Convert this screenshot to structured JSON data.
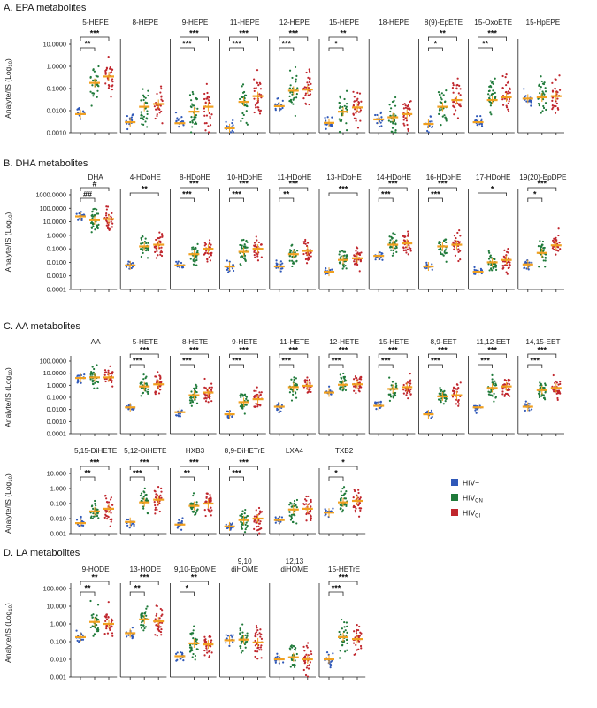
{
  "colors": {
    "HIV-": "#2f58b8",
    "HIVCN": "#1f7a3a",
    "HIVCI": "#c0262d",
    "mean": "#f0a020"
  },
  "legend": [
    {
      "key": "HIV-",
      "label": "HIV−"
    },
    {
      "key": "HIVCN",
      "label": "HIV",
      "sub": "CN"
    },
    {
      "key": "HIVCI",
      "label": "HIV",
      "sub": "CI"
    }
  ],
  "ylabel_main": "Analyte/IS (Log",
  "ylabel_sub": "10",
  "ylabel_end": ")",
  "chart_data": [
    {
      "type": "scatter",
      "title": "A. EPA metabolites",
      "ylim": [
        0.001,
        10
      ],
      "yticks": [
        "10.0000",
        "1.0000",
        "0.1000",
        "0.0100",
        "0.0010"
      ],
      "panels": [
        {
          "title": "5-HEPE",
          "means": [
            0.007,
            0.18,
            0.35
          ],
          "sig": [
            {
              "a": 0,
              "b": 1,
              "t": "**"
            },
            {
              "a": 0,
              "b": 2,
              "t": "***"
            }
          ]
        },
        {
          "title": "8-HEPE",
          "means": [
            0.003,
            0.015,
            0.02
          ],
          "sig": []
        },
        {
          "title": "9-HEPE",
          "means": [
            0.0027,
            0.009,
            0.015
          ],
          "sig": [
            {
              "a": 0,
              "b": 1,
              "t": "***"
            },
            {
              "a": 0,
              "b": 2,
              "t": "***"
            }
          ]
        },
        {
          "title": "11-HEPE",
          "means": [
            0.0016,
            0.025,
            0.045
          ],
          "sig": [
            {
              "a": 0,
              "b": 1,
              "t": "***"
            },
            {
              "a": 0,
              "b": 2,
              "t": "***"
            }
          ]
        },
        {
          "title": "12-HEPE",
          "means": [
            0.016,
            0.08,
            0.09
          ],
          "sig": [
            {
              "a": 0,
              "b": 1,
              "t": "***"
            },
            {
              "a": 0,
              "b": 2,
              "t": "***"
            }
          ]
        },
        {
          "title": "15-HEPE",
          "means": [
            0.0028,
            0.009,
            0.014
          ],
          "sig": [
            {
              "a": 0,
              "b": 1,
              "t": "*"
            },
            {
              "a": 0,
              "b": 2,
              "t": "**"
            }
          ]
        },
        {
          "title": "18-HEPE",
          "means": [
            0.004,
            0.005,
            0.007
          ],
          "sig": []
        },
        {
          "title": "8(9)-EpETE",
          "means": [
            0.0025,
            0.015,
            0.03
          ],
          "sig": [
            {
              "a": 0,
              "b": 1,
              "t": "*"
            },
            {
              "a": 0,
              "b": 2,
              "t": "**"
            }
          ]
        },
        {
          "title": "15-OxoETE",
          "means": [
            0.003,
            0.03,
            0.04
          ],
          "sig": [
            {
              "a": 0,
              "b": 1,
              "t": "**"
            },
            {
              "a": 0,
              "b": 2,
              "t": "***"
            }
          ]
        },
        {
          "title": "15-HpEPE",
          "means": [
            0.035,
            0.04,
            0.045
          ],
          "sig": []
        }
      ]
    },
    {
      "type": "scatter",
      "title": "B. DHA metabolites",
      "ylim": [
        0.0001,
        1000
      ],
      "yticks": [
        "1000.0000",
        "100.0000",
        "10.0000",
        "1.0000",
        "0.1000",
        "0.0100",
        "0.0010",
        "0.0001"
      ],
      "panels": [
        {
          "title": "DHA",
          "means": [
            25,
            13,
            16
          ],
          "sig": [
            {
              "a": 0,
              "b": 1,
              "t": "##"
            },
            {
              "a": 0,
              "b": 2,
              "t": "#"
            }
          ]
        },
        {
          "title": "4-HDoHE",
          "means": [
            0.006,
            0.15,
            0.2
          ],
          "sig": [
            {
              "a": 0,
              "b": 2,
              "t": "**"
            }
          ]
        },
        {
          "title": "8-HDoHE",
          "means": [
            0.006,
            0.04,
            0.1
          ],
          "sig": [
            {
              "a": 0,
              "b": 1,
              "t": "***"
            },
            {
              "a": 0,
              "b": 2,
              "t": "***"
            }
          ]
        },
        {
          "title": "10-HDoHE",
          "means": [
            0.005,
            0.06,
            0.1
          ],
          "sig": [
            {
              "a": 0,
              "b": 1,
              "t": "***"
            },
            {
              "a": 0,
              "b": 2,
              "t": "***"
            }
          ]
        },
        {
          "title": "11-HDoHE",
          "means": [
            0.005,
            0.04,
            0.07
          ],
          "sig": [
            {
              "a": 0,
              "b": 1,
              "t": "**"
            },
            {
              "a": 0,
              "b": 2,
              "t": "***"
            }
          ]
        },
        {
          "title": "13-HDoHE",
          "means": [
            0.002,
            0.015,
            0.02
          ],
          "sig": [
            {
              "a": 0,
              "b": 2,
              "t": "***"
            }
          ]
        },
        {
          "title": "14-HDoHE",
          "means": [
            0.03,
            0.2,
            0.25
          ],
          "sig": [
            {
              "a": 0,
              "b": 1,
              "t": "***"
            },
            {
              "a": 0,
              "b": 2,
              "t": "***"
            }
          ]
        },
        {
          "title": "16-HDoHE",
          "means": [
            0.005,
            0.15,
            0.2
          ],
          "sig": [
            {
              "a": 0,
              "b": 1,
              "t": "***"
            },
            {
              "a": 0,
              "b": 2,
              "t": "***"
            }
          ]
        },
        {
          "title": "17-HDoHE",
          "means": [
            0.002,
            0.01,
            0.015
          ],
          "sig": [
            {
              "a": 0,
              "b": 2,
              "t": "*"
            }
          ]
        },
        {
          "title": "19(20)-EpDPE",
          "means": [
            0.007,
            0.05,
            0.18
          ],
          "sig": [
            {
              "a": 0,
              "b": 1,
              "t": "*"
            },
            {
              "a": 0,
              "b": 2,
              "t": "***"
            }
          ]
        }
      ]
    },
    {
      "type": "scatter",
      "title": "C. AA metabolites",
      "ylim": [
        0.0001,
        100
      ],
      "yticks": [
        "100.0000",
        "10.0000",
        "1.0000",
        "0.1000",
        "0.0100",
        "0.0010",
        "0.0001"
      ],
      "panels": [
        {
          "title": "AA",
          "means": [
            4,
            4.5,
            4.5
          ],
          "sig": []
        },
        {
          "title": "5-HETE",
          "means": [
            0.015,
            0.8,
            1.2
          ],
          "sig": [
            {
              "a": 0,
              "b": 1,
              "t": "***"
            },
            {
              "a": 0,
              "b": 2,
              "t": "***"
            }
          ]
        },
        {
          "title": "8-HETE",
          "means": [
            0.006,
            0.15,
            0.25
          ],
          "sig": [
            {
              "a": 0,
              "b": 1,
              "t": "***"
            },
            {
              "a": 0,
              "b": 2,
              "t": "***"
            }
          ]
        },
        {
          "title": "9-HETE",
          "means": [
            0.004,
            0.04,
            0.07
          ],
          "sig": [
            {
              "a": 0,
              "b": 1,
              "t": "***"
            },
            {
              "a": 0,
              "b": 2,
              "t": "***"
            }
          ]
        },
        {
          "title": "11-HETE",
          "means": [
            0.017,
            0.7,
            0.9
          ],
          "sig": [
            {
              "a": 0,
              "b": 1,
              "t": "***"
            },
            {
              "a": 0,
              "b": 2,
              "t": "***"
            }
          ]
        },
        {
          "title": "12-HETE",
          "means": [
            0.25,
            1.1,
            1.2
          ],
          "sig": [
            {
              "a": 0,
              "b": 1,
              "t": "***"
            },
            {
              "a": 0,
              "b": 2,
              "t": "***"
            }
          ]
        },
        {
          "title": "15-HETE",
          "means": [
            0.02,
            0.5,
            0.7
          ],
          "sig": [
            {
              "a": 0,
              "b": 1,
              "t": "***"
            },
            {
              "a": 0,
              "b": 2,
              "t": "***"
            }
          ]
        },
        {
          "title": "8,9-EET",
          "means": [
            0.004,
            0.12,
            0.15
          ],
          "sig": [
            {
              "a": 0,
              "b": 1,
              "t": "***"
            },
            {
              "a": 0,
              "b": 2,
              "t": "***"
            }
          ]
        },
        {
          "title": "11,12-EET",
          "means": [
            0.015,
            0.6,
            0.8
          ],
          "sig": [
            {
              "a": 0,
              "b": 1,
              "t": "***"
            },
            {
              "a": 0,
              "b": 2,
              "t": "***"
            }
          ]
        },
        {
          "title": "14,15-EET",
          "means": [
            0.017,
            0.4,
            0.6
          ],
          "sig": [
            {
              "a": 0,
              "b": 1,
              "t": "***"
            },
            {
              "a": 0,
              "b": 2,
              "t": "***"
            }
          ]
        }
      ]
    },
    {
      "type": "scatter",
      "title": "",
      "ylim": [
        0.001,
        10
      ],
      "yticks": [
        "10.000",
        "1.000",
        "0.100",
        "0.010",
        "0.001"
      ],
      "panels": [
        {
          "title": "5,15-DiHETE",
          "means": [
            0.005,
            0.03,
            0.045
          ],
          "sig": [
            {
              "a": 0,
              "b": 1,
              "t": "**"
            },
            {
              "a": 0,
              "b": 2,
              "t": "***"
            }
          ]
        },
        {
          "title": "5,12-DiHETE",
          "means": [
            0.006,
            0.12,
            0.18
          ],
          "sig": [
            {
              "a": 0,
              "b": 1,
              "t": "***"
            },
            {
              "a": 0,
              "b": 2,
              "t": "***"
            }
          ]
        },
        {
          "title": "HXB3",
          "means": [
            0.004,
            0.07,
            0.1
          ],
          "sig": [
            {
              "a": 0,
              "b": 1,
              "t": "**"
            },
            {
              "a": 0,
              "b": 2,
              "t": "***"
            }
          ]
        },
        {
          "title": "8,9-DiHETrE",
          "means": [
            0.003,
            0.008,
            0.01
          ],
          "sig": [
            {
              "a": 0,
              "b": 1,
              "t": "***"
            },
            {
              "a": 0,
              "b": 2,
              "t": "***"
            }
          ]
        },
        {
          "title": "LXA4",
          "means": [
            0.008,
            0.04,
            0.045
          ],
          "sig": []
        },
        {
          "title": "TXB2",
          "means": [
            0.025,
            0.12,
            0.15
          ],
          "sig": [
            {
              "a": 0,
              "b": 1,
              "t": "*"
            },
            {
              "a": 0,
              "b": 2,
              "t": "*"
            }
          ]
        }
      ]
    },
    {
      "type": "scatter",
      "title": "D. LA metabolites",
      "ylim": [
        0.001,
        100
      ],
      "yticks": [
        "100.000",
        "10.000",
        "1.000",
        "0.100",
        "0.010",
        "0.001"
      ],
      "panels": [
        {
          "title": "9-HODE",
          "means": [
            0.18,
            1.3,
            1.0
          ],
          "sig": [
            {
              "a": 0,
              "b": 1,
              "t": "**"
            },
            {
              "a": 0,
              "b": 2,
              "t": "**"
            }
          ]
        },
        {
          "title": "13-HODE",
          "means": [
            0.3,
            1.8,
            1.4
          ],
          "sig": [
            {
              "a": 0,
              "b": 1,
              "t": "**"
            },
            {
              "a": 0,
              "b": 2,
              "t": "***"
            }
          ]
        },
        {
          "title": "9,10-EpOME",
          "means": [
            0.015,
            0.08,
            0.07
          ],
          "sig": [
            {
              "a": 0,
              "b": 1,
              "t": "*"
            },
            {
              "a": 0,
              "b": 2,
              "t": "**"
            }
          ]
        },
        {
          "title": "9,10 diHOME",
          "means": [
            0.12,
            0.13,
            0.09
          ],
          "sig": []
        },
        {
          "title": "12,13 diHOME",
          "means": [
            0.01,
            0.013,
            0.01
          ],
          "sig": []
        },
        {
          "title": "15-HETrE",
          "means": [
            0.01,
            0.18,
            0.14
          ],
          "sig": [
            {
              "a": 0,
              "b": 1,
              "t": "***"
            },
            {
              "a": 0,
              "b": 2,
              "t": "***"
            }
          ]
        }
      ]
    }
  ]
}
